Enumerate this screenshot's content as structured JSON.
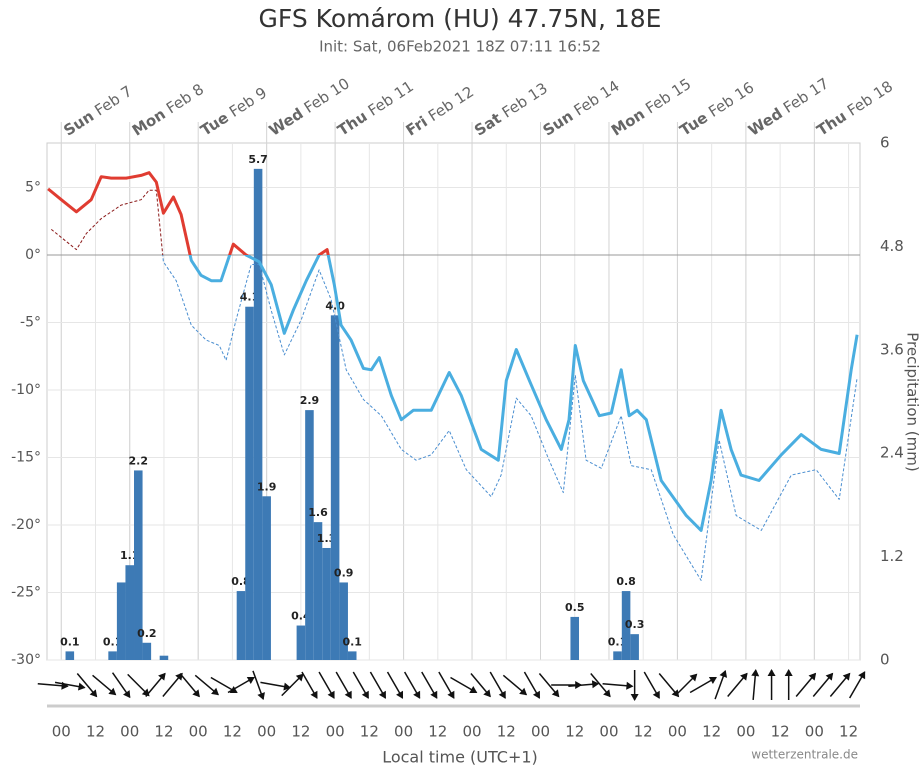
{
  "chart_data": {
    "type": "meteogram",
    "title": "GFS Komárom (HU) 47.75N, 18E",
    "subtitle": "Init: Sat, 06Feb2021 18Z 07:11 16:52",
    "x_label": "Local time (UTC+1)",
    "y2_label": "Precipitation (mm)",
    "credit": "wetterzentrale.de",
    "xlim": [
      -5,
      280
    ],
    "xticks": [
      {
        "value": 0,
        "label": "00"
      },
      {
        "value": 12,
        "label": "12"
      },
      {
        "value": 24,
        "label": "00"
      },
      {
        "value": 36,
        "label": "12"
      },
      {
        "value": 48,
        "label": "00"
      },
      {
        "value": 60,
        "label": "12"
      },
      {
        "value": 72,
        "label": "00"
      },
      {
        "value": 84,
        "label": "12"
      },
      {
        "value": 96,
        "label": "00"
      },
      {
        "value": 108,
        "label": "12"
      },
      {
        "value": 120,
        "label": "00"
      },
      {
        "value": 132,
        "label": "12"
      },
      {
        "value": 144,
        "label": "00"
      },
      {
        "value": 156,
        "label": "12"
      },
      {
        "value": 168,
        "label": "00"
      },
      {
        "value": 180,
        "label": "12"
      },
      {
        "value": 192,
        "label": "00"
      },
      {
        "value": 204,
        "label": "12"
      },
      {
        "value": 216,
        "label": "00"
      },
      {
        "value": 228,
        "label": "12"
      },
      {
        "value": 240,
        "label": "00"
      },
      {
        "value": 252,
        "label": "12"
      },
      {
        "value": 264,
        "label": "00"
      },
      {
        "value": 276,
        "label": "12"
      }
    ],
    "days": [
      {
        "value": 0,
        "weekday": "Sun",
        "date": "Feb 7"
      },
      {
        "value": 24,
        "weekday": "Mon",
        "date": "Feb 8"
      },
      {
        "value": 48,
        "weekday": "Tue",
        "date": "Feb 9"
      },
      {
        "value": 72,
        "weekday": "Wed",
        "date": "Feb 10"
      },
      {
        "value": 96,
        "weekday": "Thu",
        "date": "Feb 11"
      },
      {
        "value": 120,
        "weekday": "Fri",
        "date": "Feb 12"
      },
      {
        "value": 144,
        "weekday": "Sat",
        "date": "Feb 13"
      },
      {
        "value": 168,
        "weekday": "Sun",
        "date": "Feb 14"
      },
      {
        "value": 192,
        "weekday": "Mon",
        "date": "Feb 15"
      },
      {
        "value": 216,
        "weekday": "Tue",
        "date": "Feb 16"
      },
      {
        "value": 240,
        "weekday": "Wed",
        "date": "Feb 17"
      },
      {
        "value": 264,
        "weekday": "Thu",
        "date": "Feb 18"
      }
    ],
    "ylim": [
      -30,
      8.3
    ],
    "yticks": [
      {
        "value": 5,
        "label": "5°"
      },
      {
        "value": 0,
        "label": "0°"
      },
      {
        "value": -5,
        "label": "-5°"
      },
      {
        "value": -10,
        "label": "-10°"
      },
      {
        "value": -15,
        "label": "-15°"
      },
      {
        "value": -20,
        "label": "-20°"
      },
      {
        "value": -25,
        "label": "-25°"
      },
      {
        "value": -30,
        "label": "-30°"
      }
    ],
    "y2lim": [
      0,
      6
    ],
    "y2ticks": [
      0,
      1.2,
      2.4,
      3.6,
      4.8,
      6
    ],
    "grid": true,
    "temperature": {
      "color_above": "#e03c31",
      "color_below": "#4aaee0",
      "threshold": 0,
      "x": [
        -4.6,
        0,
        5.3,
        10.5,
        14,
        17.5,
        22.8,
        28,
        30.8,
        33.3,
        35.8,
        39.3,
        42,
        45.6,
        49,
        52.6,
        56,
        60.3,
        64.8,
        69.4,
        73.6,
        78.2,
        81.3,
        85.9,
        90.4,
        93.2,
        95.7,
        98.1,
        101.6,
        105.9,
        108.7,
        111.5,
        115.7,
        119.2,
        123.4,
        129.7,
        136,
        140.2,
        147.2,
        153.2,
        156,
        159.5,
        164.7,
        170,
        175.3,
        178,
        180.2,
        183,
        188.6,
        192.8,
        196.3,
        199.1,
        201.9,
        205.1,
        210.3,
        219.1,
        224.3,
        227.8,
        231.3,
        234.8,
        238.3,
        244.6,
        252.4,
        259.4,
        266.4,
        272.7,
        276.9,
        279
      ],
      "values": [
        4.9,
        4.1,
        3.2,
        4.1,
        5.8,
        5.7,
        5.7,
        5.9,
        6.1,
        5.4,
        3.1,
        4.3,
        3.0,
        -0.4,
        -1.5,
        -1.9,
        -1.9,
        0.8,
        0,
        -0.5,
        -2.2,
        -5.8,
        -4.1,
        -1.9,
        0,
        0.4,
        -2.2,
        -5.2,
        -6.3,
        -8.4,
        -8.5,
        -7.6,
        -10.4,
        -12.2,
        -11.5,
        -11.5,
        -8.7,
        -10.4,
        -14.4,
        -15.2,
        -9.3,
        -7,
        -9.6,
        -12.2,
        -14.4,
        -12.2,
        -6.7,
        -9.3,
        -11.9,
        -11.7,
        -8.5,
        -11.9,
        -11.5,
        -12.2,
        -16.7,
        -19.3,
        -20.4,
        -16.7,
        -11.5,
        -14.4,
        -16.3,
        -16.7,
        -14.8,
        -13.3,
        -14.4,
        -14.7,
        -8.5,
        -5.9
      ]
    },
    "dewpoint": {
      "color_above": "#8b1a1a",
      "color_below": "#4a8ed0",
      "x": [
        -3.5,
        5.3,
        8.8,
        14,
        21,
        28,
        30.8,
        33.3,
        35.8,
        40.3,
        45.6,
        50.8,
        55.4,
        57.8,
        61.3,
        66.6,
        69.4,
        73.6,
        78.2,
        84.1,
        90.4,
        94.6,
        99.9,
        105.9,
        112.2,
        119.2,
        124.4,
        129.7,
        136,
        142,
        150.7,
        154.2,
        159.5,
        164.7,
        171,
        176,
        180.2,
        184,
        189.3,
        196.3,
        199.8,
        206.8,
        214.5,
        224.3,
        230.6,
        236.6,
        245.4,
        255.9,
        264.6,
        272.7,
        279
      ],
      "values": [
        1.9,
        0.4,
        1.6,
        2.7,
        3.7,
        4.1,
        4.8,
        4.8,
        -0.5,
        -1.9,
        -5.2,
        -6.3,
        -6.7,
        -7.8,
        -4.8,
        -0.7,
        -0.7,
        -4.1,
        -7.4,
        -4.8,
        -1.1,
        -3.3,
        -8.5,
        -10.7,
        -11.9,
        -14.4,
        -15.2,
        -14.8,
        -13,
        -15.9,
        -17.9,
        -16.3,
        -10.6,
        -11.9,
        -15.2,
        -17.6,
        -8.9,
        -15.2,
        -15.8,
        -11.9,
        -15.6,
        -15.9,
        -20.7,
        -24.1,
        -13.7,
        -19.3,
        -20.4,
        -16.3,
        -15.9,
        -18.1,
        -9.1
      ]
    },
    "precipitation": {
      "color": "#3d7ab5",
      "axis": "y2",
      "bar_hours": 3,
      "x": [
        3,
        18,
        21,
        24,
        27,
        30,
        36,
        63,
        66,
        69,
        72,
        84,
        87,
        90,
        93,
        96,
        99,
        102,
        180,
        195,
        198,
        201
      ],
      "values": [
        0.1,
        0.1,
        0.9,
        1.1,
        2.2,
        0.2,
        0.05,
        0.8,
        4.1,
        5.7,
        1.9,
        0.4,
        2.9,
        1.6,
        1.3,
        4.0,
        0.9,
        0.1,
        0.5,
        0.1,
        0.8,
        0.3
      ],
      "value_labels": [
        "0.1",
        "0.1",
        null,
        "1.1",
        "2.2",
        "0.2",
        null,
        "0.8",
        "4.1",
        "5.7",
        "1.9",
        "0.4",
        "2.9",
        "1.6",
        "1.3",
        "4.0",
        "0.9",
        "0.1",
        "0.5",
        "0.1",
        "0.8",
        "0.3"
      ]
    },
    "wind": {
      "color": "#111",
      "x": [
        -3,
        3,
        9,
        15,
        21,
        27,
        33,
        39,
        45,
        51,
        57,
        63,
        69,
        75,
        81,
        87,
        93,
        99,
        105,
        111,
        117,
        123,
        129,
        135,
        141,
        147,
        153,
        159,
        165,
        171,
        177,
        183,
        189,
        195,
        201,
        207,
        213,
        219,
        225,
        231,
        237,
        243,
        249,
        255,
        261,
        267,
        273,
        279
      ],
      "direction": [
        95,
        100,
        140,
        130,
        145,
        135,
        40,
        40,
        140,
        130,
        120,
        60,
        160,
        100,
        45,
        150,
        150,
        150,
        150,
        150,
        150,
        150,
        150,
        150,
        120,
        140,
        150,
        130,
        150,
        140,
        90,
        85,
        140,
        95,
        180,
        150,
        140,
        45,
        60,
        20,
        40,
        5,
        0,
        0,
        40,
        40,
        40,
        30
      ]
    }
  }
}
